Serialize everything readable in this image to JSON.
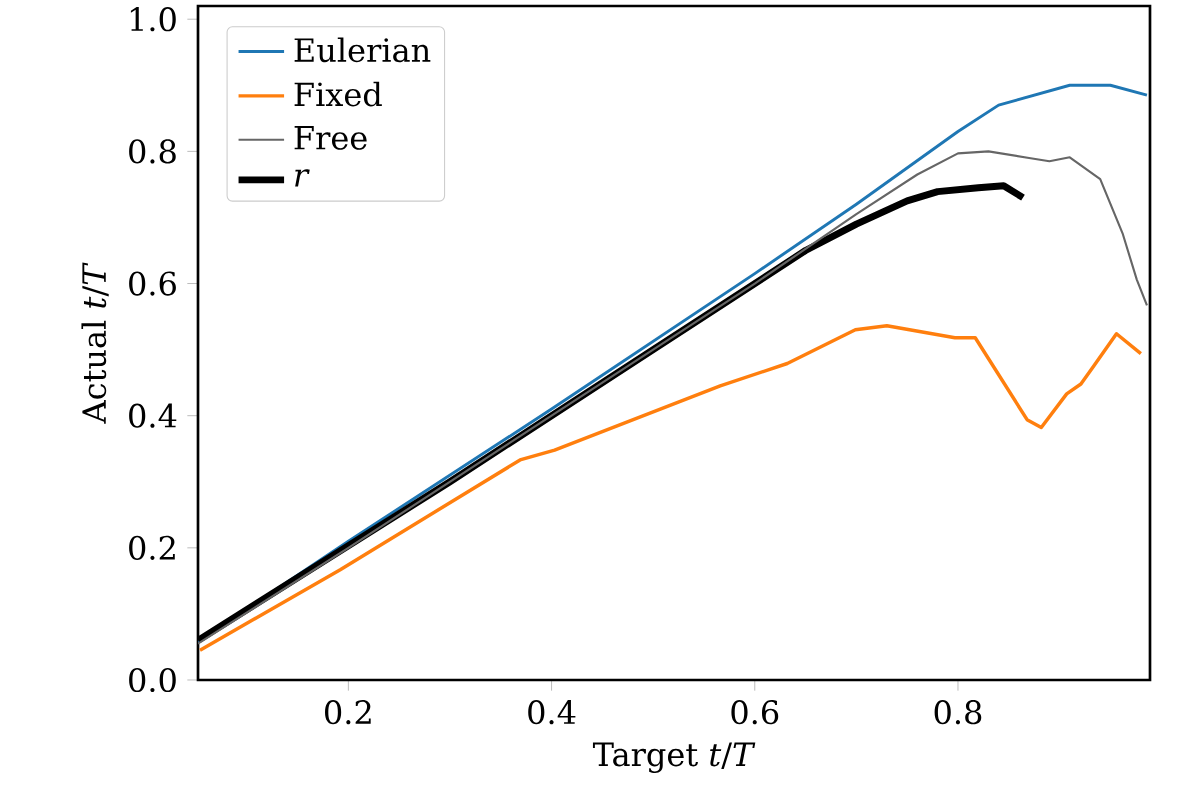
{
  "chart_data": {
    "type": "line",
    "xlabel": "Target *t*/*T*",
    "ylabel": "Actual *t*/*T*",
    "xlim": [
      0.052,
      0.989
    ],
    "ylim": [
      0,
      1.02
    ],
    "xticks": [
      0.2,
      0.4,
      0.6,
      0.8
    ],
    "yticks": [
      {
        "value": 0,
        "label": "0.0"
      },
      {
        "value": 0.2,
        "label": "0.2"
      },
      {
        "value": 0.4,
        "label": "0.4"
      },
      {
        "value": 0.6,
        "label": "0.6"
      },
      {
        "value": 0.8,
        "label": "0.8"
      },
      {
        "value": 1.0,
        "label": "1.0"
      }
    ],
    "grid": false,
    "legend": "top left",
    "series": [
      {
        "name": "Eulerian",
        "color": "#1f77b4",
        "x": [
          0.052,
          0.2,
          0.4,
          0.6,
          0.7,
          0.8,
          0.84,
          0.91,
          0.95,
          0.986
        ],
        "values": [
          0.058,
          0.21,
          0.41,
          0.615,
          0.72,
          0.83,
          0.87,
          0.9,
          0.9,
          0.885
        ]
      },
      {
        "name": "Fixed",
        "color": "#ff7f0e",
        "x": [
          0.054,
          0.192,
          0.369,
          0.403,
          0.566,
          0.632,
          0.699,
          0.73,
          0.797,
          0.817,
          0.868,
          0.882,
          0.907,
          0.921,
          0.934,
          0.956,
          0.98
        ],
        "values": [
          0.045,
          0.167,
          0.333,
          0.348,
          0.445,
          0.479,
          0.53,
          0.536,
          0.518,
          0.518,
          0.394,
          0.382,
          0.433,
          0.448,
          0.476,
          0.524,
          0.494
        ]
      },
      {
        "name": "Free",
        "color": "#666666",
        "x": [
          0.052,
          0.2,
          0.4,
          0.6,
          0.7,
          0.76,
          0.8,
          0.83,
          0.87,
          0.89,
          0.91,
          0.94,
          0.962,
          0.976,
          0.986
        ],
        "values": [
          0.055,
          0.2,
          0.4,
          0.6,
          0.705,
          0.765,
          0.797,
          0.8,
          0.79,
          0.785,
          0.791,
          0.758,
          0.676,
          0.606,
          0.567
        ]
      },
      {
        "name": "*r*",
        "color": "#000000",
        "x": [
          0.052,
          0.3,
          0.5,
          0.65,
          0.7,
          0.75,
          0.78,
          0.82,
          0.845,
          0.864
        ],
        "values": [
          0.06,
          0.3,
          0.5,
          0.65,
          0.69,
          0.725,
          0.739,
          0.745,
          0.748,
          0.73
        ]
      }
    ]
  }
}
